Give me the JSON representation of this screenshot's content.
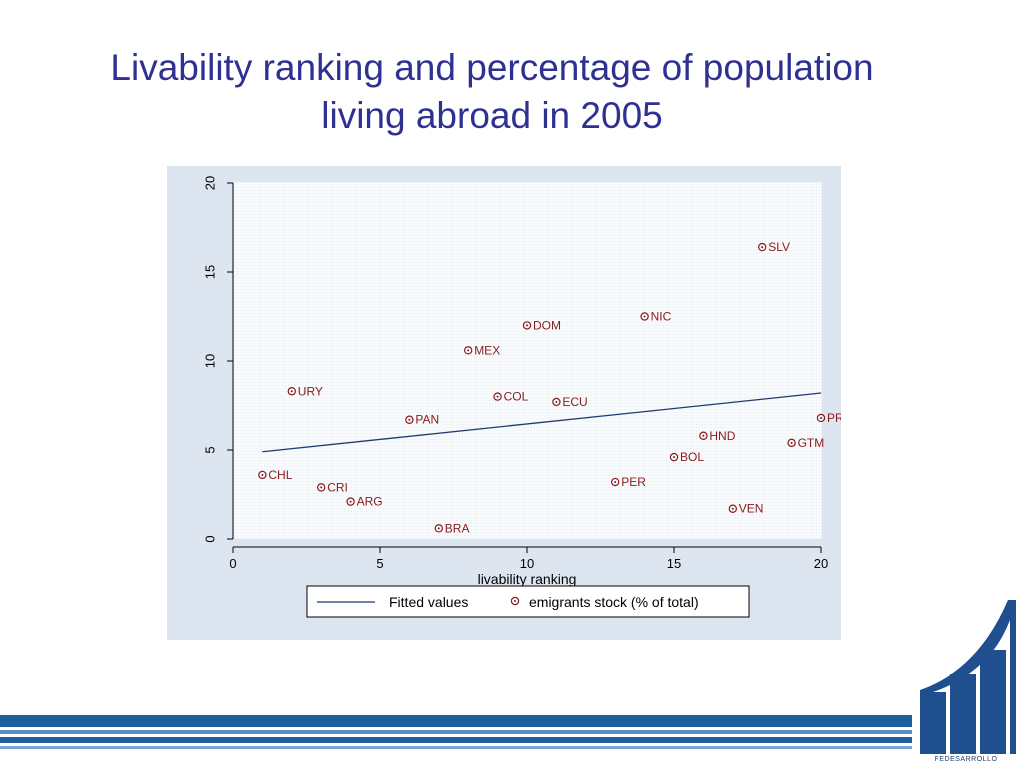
{
  "title": {
    "line1": "Livability ranking and percentage of population",
    "line2": "living abroad in 2005"
  },
  "colors": {
    "title": "#2e3192",
    "panel": "#dde6f0",
    "fit_line": "#1f3a6e",
    "marker": "#8b1a1a",
    "brand": "#1f4f8f"
  },
  "chart_data": {
    "type": "scatter",
    "xlabel": "livability ranking",
    "ylabel": "",
    "xlim": [
      0,
      20
    ],
    "ylim": [
      0,
      20
    ],
    "xticks": [
      0,
      5,
      10,
      15,
      20
    ],
    "yticks": [
      0,
      5,
      10,
      15,
      20
    ],
    "grid": true,
    "legend_position": "bottom",
    "series": [
      {
        "name": "emigrants stock (% of total)",
        "points": [
          {
            "label": "CHL",
            "x": 1,
            "y": 3.6
          },
          {
            "label": "URY",
            "x": 2,
            "y": 8.3
          },
          {
            "label": "CRI",
            "x": 3,
            "y": 2.9
          },
          {
            "label": "ARG",
            "x": 4,
            "y": 2.1
          },
          {
            "label": "PAN",
            "x": 6,
            "y": 6.7
          },
          {
            "label": "BRA",
            "x": 7,
            "y": 0.6
          },
          {
            "label": "MEX",
            "x": 8,
            "y": 10.6
          },
          {
            "label": "COL",
            "x": 9,
            "y": 8.0
          },
          {
            "label": "DOM",
            "x": 10,
            "y": 12.0
          },
          {
            "label": "ECU",
            "x": 11,
            "y": 7.7
          },
          {
            "label": "PER",
            "x": 13,
            "y": 3.2
          },
          {
            "label": "NIC",
            "x": 14,
            "y": 12.5
          },
          {
            "label": "BOL",
            "x": 15,
            "y": 4.6
          },
          {
            "label": "HND",
            "x": 16,
            "y": 5.8
          },
          {
            "label": "VEN",
            "x": 17,
            "y": 1.7
          },
          {
            "label": "SLV",
            "x": 18,
            "y": 16.4
          },
          {
            "label": "GTM",
            "x": 19,
            "y": 5.4
          },
          {
            "label": "PRY",
            "x": 20,
            "y": 6.8
          }
        ]
      },
      {
        "name": "Fitted values",
        "line": [
          {
            "x": 1,
            "y": 4.9
          },
          {
            "x": 20,
            "y": 8.2
          }
        ]
      }
    ]
  },
  "logo": {
    "text": "FEDESARROLLO"
  }
}
